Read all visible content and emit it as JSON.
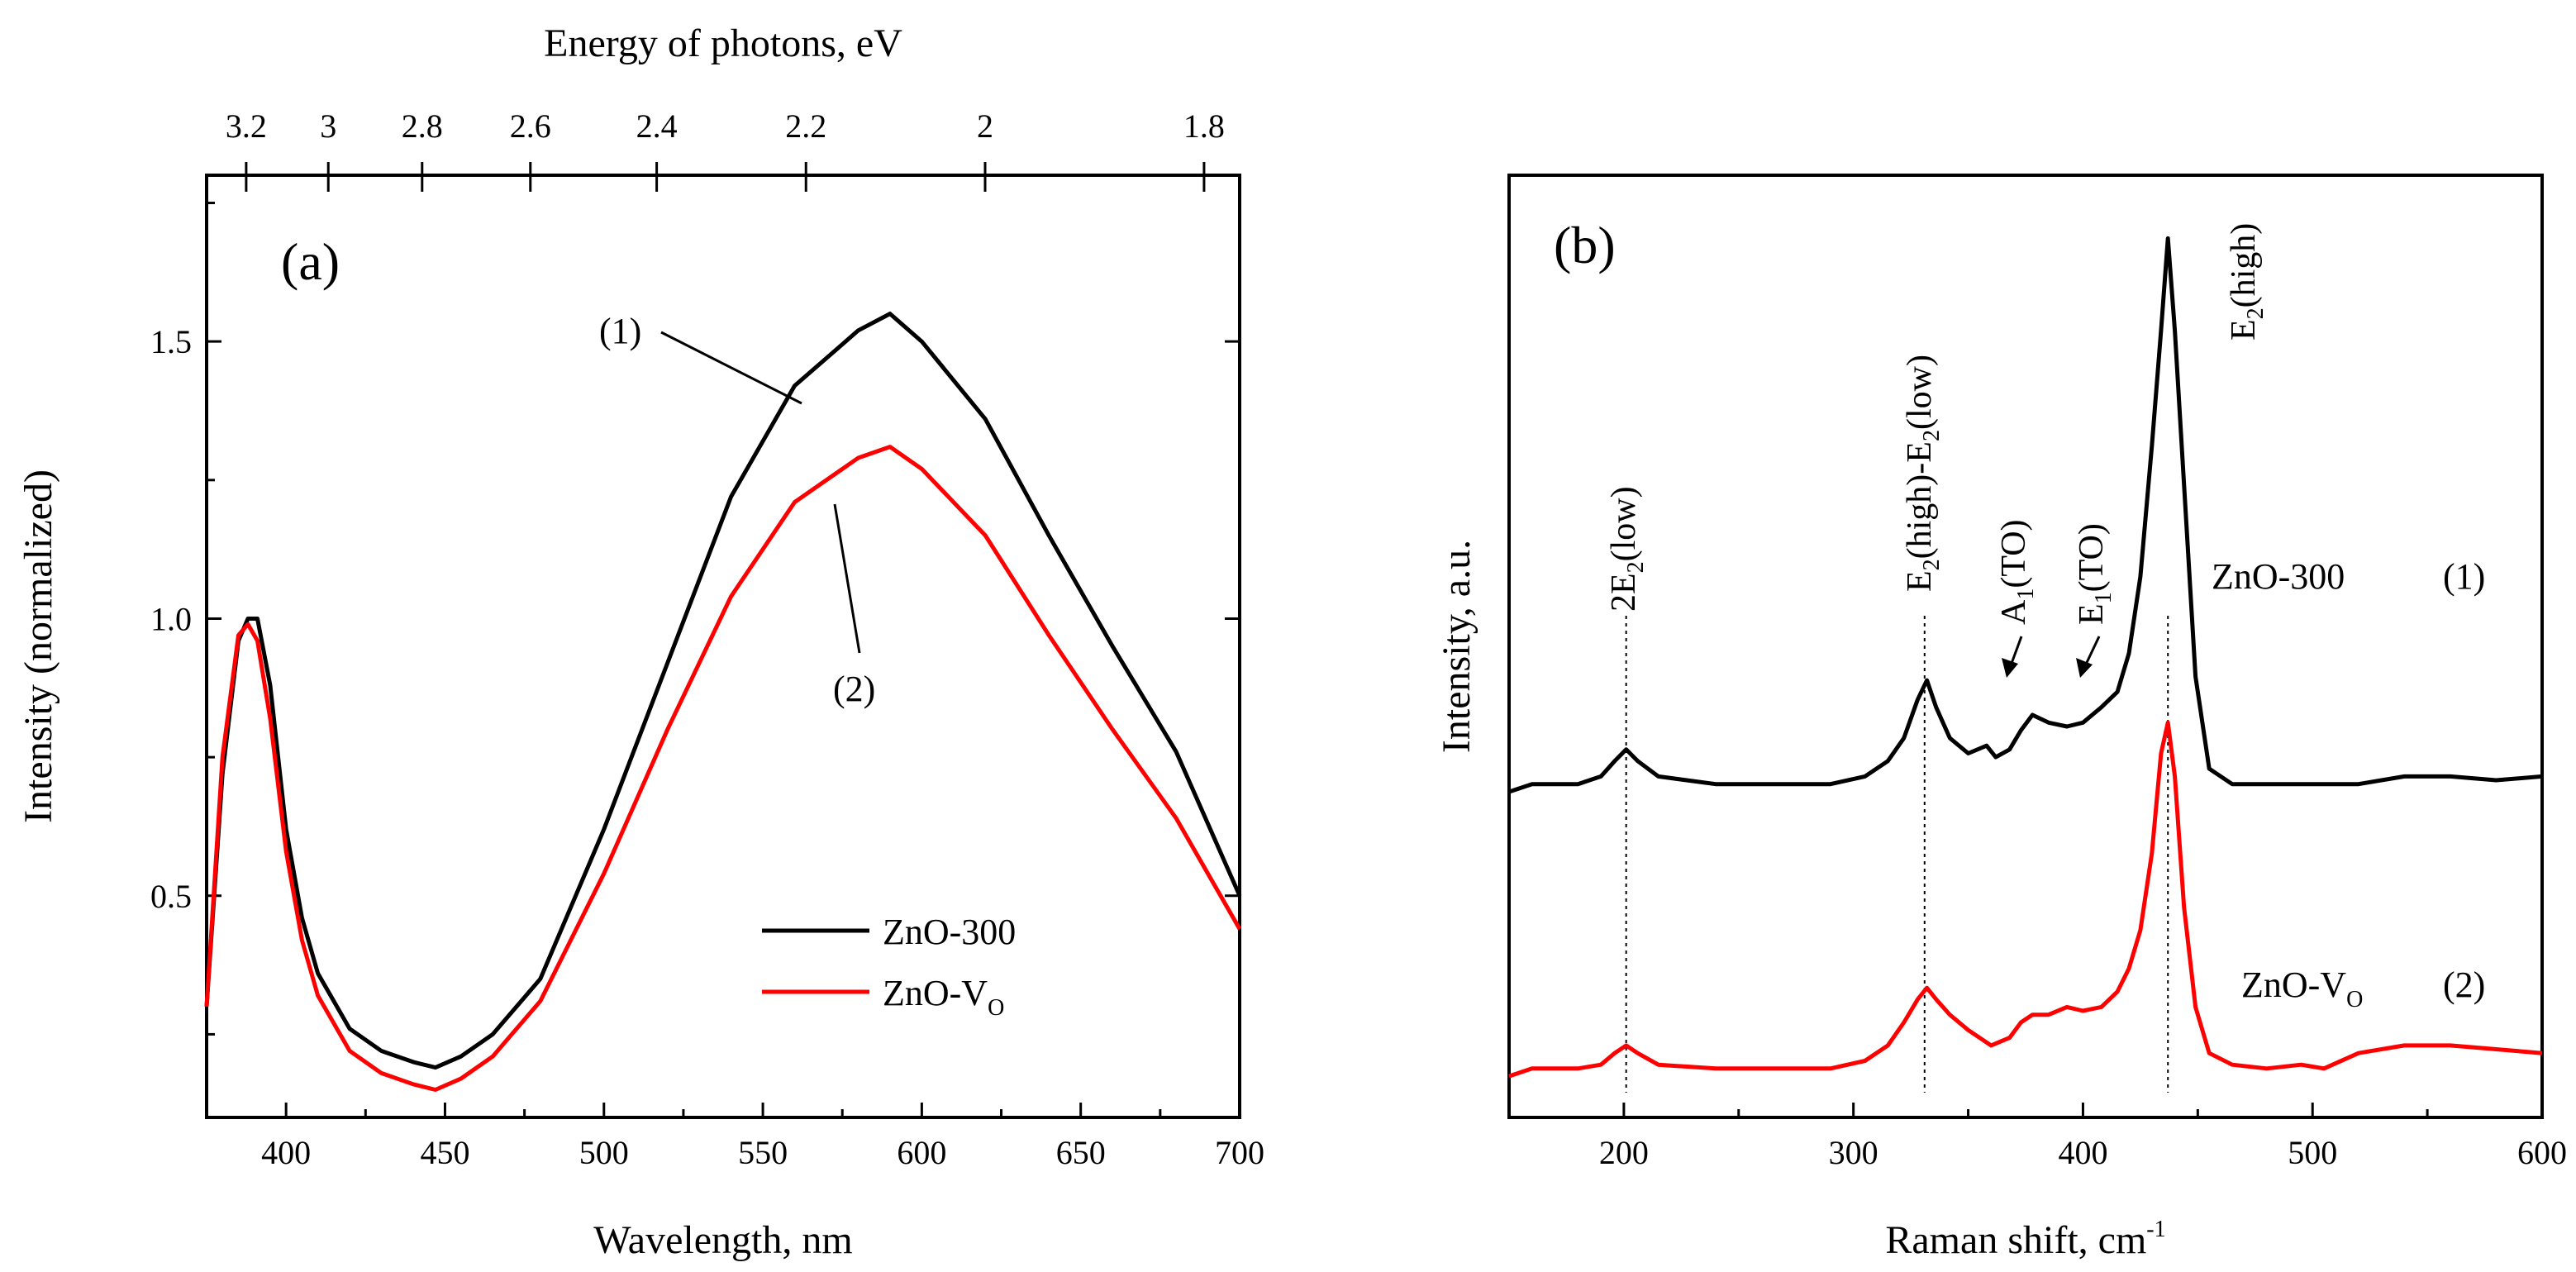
{
  "chart_data": [
    {
      "panel": "(a)",
      "type": "line",
      "xlabel": "Wavelength, nm",
      "ylabel": "Intensity (normalized)",
      "xlim": [
        375,
        700
      ],
      "ylim": [
        0.1,
        1.8
      ],
      "xticks": [
        400,
        450,
        500,
        550,
        600,
        650,
        700
      ],
      "yticks": [
        0.5,
        1.0,
        1.5
      ],
      "top_axis": {
        "label": "Energy of photons, eV",
        "ticks": [
          3.2,
          3,
          2.8,
          2.6,
          2.4,
          2.2,
          2,
          1.8
        ],
        "tick_labels": [
          "3.2",
          "3",
          "2.8",
          "2.6",
          "2.4",
          "2.2",
          "2",
          "1.8"
        ]
      },
      "legend_position": "lower-right",
      "series": [
        {
          "name": "ZnO-300",
          "label_base": "ZnO-300",
          "label_sub": "",
          "color": "#000000",
          "annotation": "(1)",
          "x": [
            375,
            380,
            385,
            388,
            391,
            395,
            400,
            405,
            410,
            420,
            430,
            440,
            447,
            455,
            465,
            480,
            500,
            520,
            540,
            560,
            580,
            590,
            600,
            620,
            640,
            660,
            680,
            700
          ],
          "values": [
            0.3,
            0.72,
            0.96,
            1.0,
            1.0,
            0.88,
            0.62,
            0.46,
            0.36,
            0.26,
            0.22,
            0.2,
            0.19,
            0.21,
            0.25,
            0.35,
            0.62,
            0.92,
            1.22,
            1.42,
            1.52,
            1.55,
            1.5,
            1.36,
            1.15,
            0.95,
            0.76,
            0.5
          ]
        },
        {
          "name": "ZnO-VO",
          "label_base": "ZnO-V",
          "label_sub": "O",
          "color": "#ff0000",
          "annotation": "(2)",
          "x": [
            375,
            380,
            385,
            388,
            391,
            395,
            400,
            405,
            410,
            420,
            430,
            440,
            447,
            455,
            465,
            480,
            500,
            520,
            540,
            560,
            580,
            590,
            600,
            620,
            640,
            660,
            680,
            700
          ],
          "values": [
            0.3,
            0.75,
            0.97,
            0.99,
            0.96,
            0.82,
            0.58,
            0.42,
            0.32,
            0.22,
            0.18,
            0.16,
            0.15,
            0.17,
            0.21,
            0.31,
            0.54,
            0.8,
            1.04,
            1.21,
            1.29,
            1.31,
            1.27,
            1.15,
            0.97,
            0.8,
            0.64,
            0.44
          ]
        }
      ]
    },
    {
      "panel": "(b)",
      "type": "line",
      "xlabel_base": "Raman shift, cm",
      "xlabel_sup": "-1",
      "ylabel": "Intensity, a.u.",
      "xlim": [
        150,
        600
      ],
      "ylim": [
        0,
        1
      ],
      "xticks": [
        200,
        300,
        400,
        500,
        600
      ],
      "series": [
        {
          "name": "ZnO-300",
          "label": "ZnO-300",
          "index_label": "(1)",
          "color": "#000000",
          "x": [
            150,
            160,
            170,
            180,
            190,
            196,
            201,
            206,
            215,
            240,
            270,
            290,
            305,
            315,
            322,
            328,
            332,
            336,
            342,
            350,
            358,
            362,
            368,
            373,
            378,
            385,
            393,
            400,
            408,
            415,
            420,
            425,
            430,
            434,
            437,
            440,
            444,
            449,
            455,
            465,
            480,
            500,
            520,
            540,
            560,
            580,
            600
          ],
          "values": [
            0.4,
            0.41,
            0.41,
            0.41,
            0.42,
            0.44,
            0.455,
            0.44,
            0.42,
            0.41,
            0.41,
            0.41,
            0.42,
            0.44,
            0.47,
            0.52,
            0.545,
            0.51,
            0.47,
            0.45,
            0.46,
            0.445,
            0.455,
            0.48,
            0.5,
            0.49,
            0.485,
            0.49,
            0.51,
            0.53,
            0.58,
            0.68,
            0.85,
            1.0,
            1.12,
            1.0,
            0.8,
            0.55,
            0.43,
            0.41,
            0.41,
            0.41,
            0.41,
            0.42,
            0.42,
            0.415,
            0.42
          ]
        },
        {
          "name": "ZnO-VO",
          "label_base": "ZnO-V",
          "label_sub": "O",
          "index_label": "(2)",
          "color": "#ff0000",
          "x": [
            150,
            160,
            170,
            180,
            190,
            196,
            201,
            206,
            215,
            240,
            270,
            290,
            305,
            315,
            322,
            328,
            332,
            336,
            342,
            350,
            360,
            368,
            373,
            378,
            385,
            393,
            400,
            408,
            415,
            420,
            425,
            430,
            434,
            437,
            440,
            444,
            449,
            455,
            465,
            480,
            495,
            505,
            520,
            540,
            560,
            580,
            600
          ],
          "values": [
            0.03,
            0.04,
            0.04,
            0.04,
            0.045,
            0.06,
            0.07,
            0.06,
            0.045,
            0.04,
            0.04,
            0.04,
            0.05,
            0.07,
            0.1,
            0.13,
            0.145,
            0.13,
            0.11,
            0.09,
            0.07,
            0.08,
            0.1,
            0.11,
            0.11,
            0.12,
            0.115,
            0.12,
            0.14,
            0.17,
            0.22,
            0.32,
            0.45,
            0.49,
            0.42,
            0.25,
            0.12,
            0.06,
            0.045,
            0.04,
            0.045,
            0.04,
            0.06,
            0.07,
            0.07,
            0.065,
            0.06
          ]
        }
      ],
      "mode_lines": [
        201,
        331,
        437
      ],
      "mode_labels": [
        {
          "base1": "2E",
          "sub1": "2",
          "tail": "(low)"
        },
        {
          "base1": "E",
          "sub1": "2",
          "mid": "(high)-E",
          "sub2": "2",
          "tail": "(low)"
        },
        {
          "base1": "A",
          "sub1": "1",
          "tail": "(TO)"
        },
        {
          "base1": "E",
          "sub1": "1",
          "tail": "(TO)"
        },
        {
          "base1": "E",
          "sub1": "2",
          "tail": "(high)"
        }
      ]
    }
  ]
}
